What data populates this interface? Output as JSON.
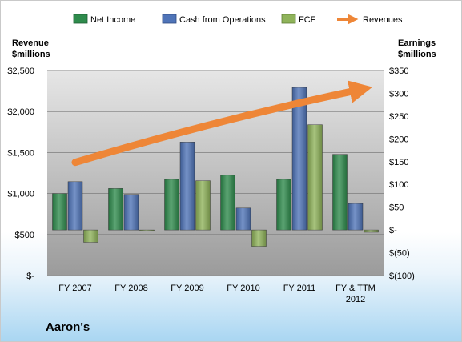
{
  "chart_data": {
    "type": "bar",
    "title": "",
    "company": "Aaron's",
    "categories": [
      "FY 2007",
      "FY 2008",
      "FY 2009",
      "FY 2010",
      "FY 2011",
      "FY & TTM 2012"
    ],
    "category_lines": [
      [
        "FY 2007"
      ],
      [
        "FY 2008"
      ],
      [
        "FY 2009"
      ],
      [
        "FY 2010"
      ],
      [
        "FY 2011"
      ],
      [
        "FY & TTM",
        "2012"
      ]
    ],
    "left_axis": {
      "title_lines": [
        "Revenue",
        "$millions"
      ],
      "ylim": [
        0,
        2500
      ],
      "ticks": [
        0,
        500,
        1000,
        1500,
        2000,
        2500
      ],
      "tick_labels": [
        "$-",
        "$500",
        "$1,000",
        "$1,500",
        "$2,000",
        "$2,500"
      ]
    },
    "right_axis": {
      "title_lines": [
        "Earnings",
        "$millions"
      ],
      "ylim": [
        -100,
        350
      ],
      "ticks": [
        -100,
        -50,
        0,
        50,
        100,
        150,
        200,
        250,
        300,
        350
      ],
      "tick_labels": [
        "$(100)",
        "$(50)",
        "$-",
        "$50",
        "$100",
        "$150",
        "$200",
        "$250",
        "$300",
        "$350"
      ]
    },
    "series": [
      {
        "name": "Net Income",
        "axis": "right",
        "color": "#2e8b4c",
        "values": [
          80,
          91,
          111,
          120,
          111,
          166
        ]
      },
      {
        "name": "Cash from Operations",
        "axis": "right",
        "color": "#4f74b8",
        "values": [
          106,
          78,
          193,
          48,
          313,
          58
        ]
      },
      {
        "name": "FCF",
        "axis": "right",
        "color": "#8fb35a",
        "values": [
          -27,
          0,
          108,
          -36,
          231,
          -5
        ]
      }
    ],
    "trend": {
      "name": "Revenues",
      "axis": "left",
      "color": "#ee8637",
      "start_value": 1380,
      "end_value": 2270
    },
    "grid": true,
    "legend_position": "top"
  }
}
